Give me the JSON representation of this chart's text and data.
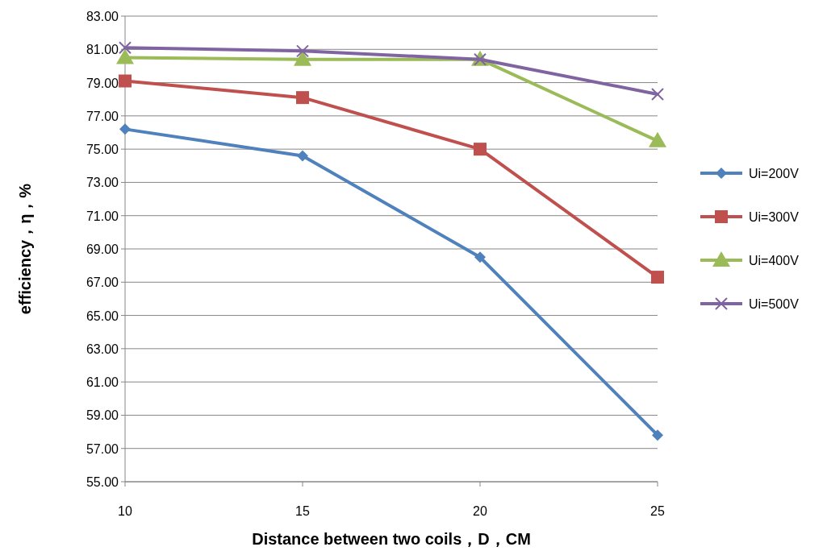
{
  "chart_data": {
    "type": "line",
    "xlabel": "Distance between two coils，D，CM",
    "ylabel": "efficiency，η，%",
    "x": [
      10,
      15,
      20,
      25
    ],
    "xlim": [
      10,
      25
    ],
    "xticks": [
      10,
      15,
      20,
      25
    ],
    "ylim": [
      55,
      83
    ],
    "yticks": [
      {
        "value": 55,
        "label": "55.00"
      },
      {
        "value": 57,
        "label": "57.00"
      },
      {
        "value": 59,
        "label": "59.00"
      },
      {
        "value": 61,
        "label": "61.00"
      },
      {
        "value": 63,
        "label": "63.00"
      },
      {
        "value": 65,
        "label": "65.00"
      },
      {
        "value": 67,
        "label": "67.00"
      },
      {
        "value": 69,
        "label": "69.00"
      },
      {
        "value": 71,
        "label": "71.00"
      },
      {
        "value": 73,
        "label": "73.00"
      },
      {
        "value": 75,
        "label": "75.00"
      },
      {
        "value": 77,
        "label": "77.00"
      },
      {
        "value": 79,
        "label": "79.00"
      },
      {
        "value": 81,
        "label": "81.00"
      },
      {
        "value": 83,
        "label": "83.00"
      }
    ],
    "grid": "y",
    "legend": "right",
    "line_style": "solid",
    "series": [
      {
        "name": "Ui=200V",
        "color": "#4f81bd",
        "marker": "diamond",
        "values": [
          76.2,
          74.6,
          68.5,
          57.8
        ]
      },
      {
        "name": "Ui=300V",
        "color": "#c0504d",
        "marker": "square",
        "values": [
          79.1,
          78.1,
          75.0,
          67.3
        ]
      },
      {
        "name": "Ui=400V",
        "color": "#9bbb59",
        "marker": "triangle",
        "values": [
          80.5,
          80.4,
          80.4,
          75.5
        ]
      },
      {
        "name": "Ui=500V",
        "color": "#8064a2",
        "marker": "cross",
        "values": [
          81.1,
          80.9,
          80.4,
          78.3
        ]
      }
    ]
  }
}
